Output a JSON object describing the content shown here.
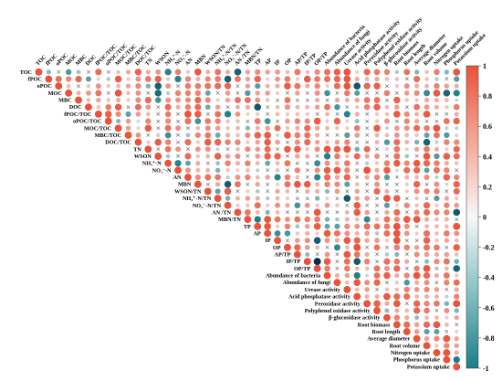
{
  "chart_data": {
    "type": "heatmap",
    "subtype": "triangular-correlation-matrix",
    "title": "",
    "variables": [
      "TOC",
      "fPOC",
      "oPOC",
      "MOC",
      "MBC",
      "DOC",
      "fPOC/TOC",
      "oPOC/TOC",
      "MOC/TOC",
      "MBC/TOC",
      "DOC/TOC",
      "TN",
      "WSON",
      "NH₄⁺-N",
      "NO₃⁻-N",
      "AN",
      "MBN",
      "WSON/TN",
      "NH₄⁺-N/TN",
      "NO₃⁻-N/TN",
      "AN /TN",
      "MBN/TN",
      "TP",
      "AP",
      "IP",
      "OP",
      "AP/TP",
      "IP/TP",
      "OP/TP",
      "Abundance of bacteria",
      "Abundance of fungi",
      "Urease activity",
      "Acid phosphatase activity",
      "Peroxidase activity",
      "Polyphenol oxidase activity",
      "β-glucosidase activity",
      "Root biomass",
      "Root length",
      "Average diameter",
      "Root volume",
      "Nitrogen uptake",
      "Phosphorus uptake",
      "Potassium uptake"
    ],
    "colorbar": {
      "ticks": [
        "1",
        "0.8",
        "0.6",
        "0.4",
        "0.2",
        "0",
        "-0.2",
        "-0.4",
        "-0.6",
        "-0.8",
        "-1"
      ],
      "range": [
        -1,
        1
      ],
      "colors": {
        "positive": "#e8533a",
        "neutral": "#f7f7f7",
        "negative": "#1b7e87",
        "min": "#0b2a52"
      }
    },
    "marker_not_significant": "×",
    "notes": "Upper triangle shows circles (size and color ∝ correlation) or × where not significant; diagonal = 1."
  }
}
